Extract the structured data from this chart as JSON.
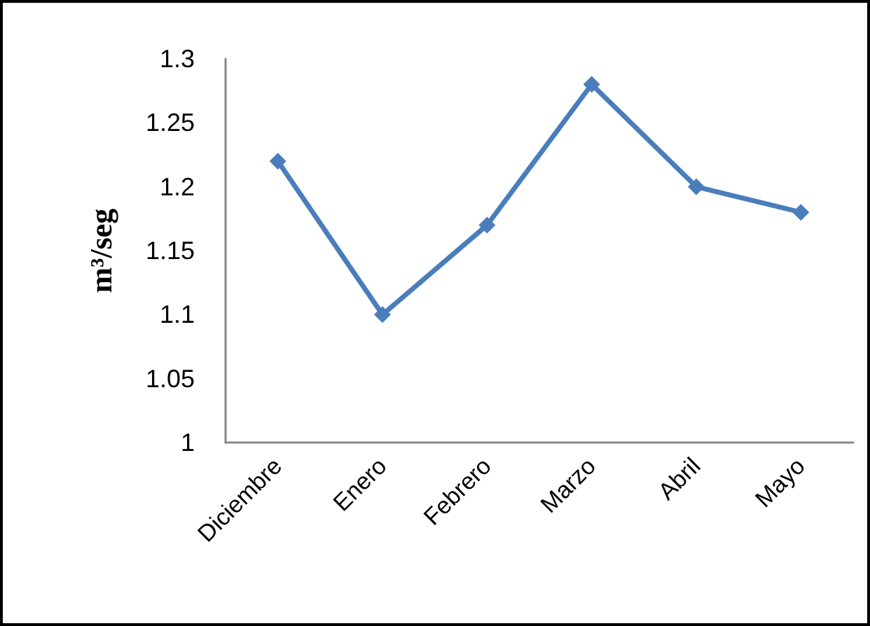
{
  "chart_data": {
    "type": "line",
    "ylabel": "m³/seg",
    "categories": [
      "Diciembre",
      "Enero",
      "Febrero",
      "Marzo",
      "Abril",
      "Mayo"
    ],
    "series": [
      {
        "color": "#4a7ebb",
        "values": [
          1.22,
          1.1,
          1.17,
          1.28,
          1.2,
          1.18
        ]
      }
    ],
    "ylim": [
      1,
      1.3
    ],
    "yticks": [
      1,
      1.05,
      1.1,
      1.15,
      1.2,
      1.25,
      1.3
    ],
    "grid": false,
    "marker": "diamond",
    "line_style": "solid"
  }
}
